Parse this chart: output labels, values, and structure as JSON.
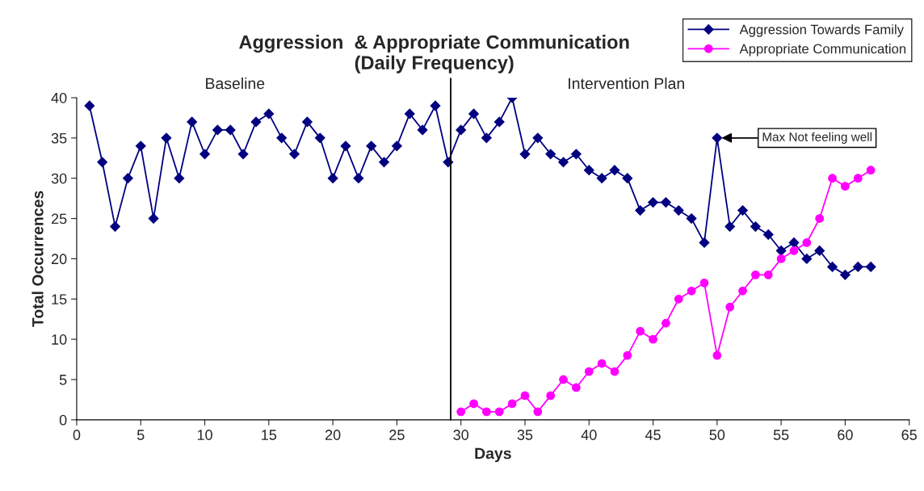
{
  "chart_data": {
    "type": "line",
    "title": "Aggression  & Appropriate Communication\n(Daily Frequency)",
    "xlabel": "Days",
    "ylabel": "Total Occurrences",
    "series": [
      {
        "name": "Aggression Towards Family",
        "color": "#000080",
        "marker": "diamond",
        "x": [
          1,
          2,
          3,
          4,
          5,
          6,
          7,
          8,
          9,
          10,
          11,
          12,
          13,
          14,
          15,
          16,
          17,
          18,
          19,
          20,
          21,
          22,
          23,
          24,
          25,
          26,
          27,
          28,
          29,
          30,
          31,
          32,
          33,
          34,
          35,
          36,
          37,
          38,
          39,
          40,
          41,
          42,
          43,
          44,
          45,
          46,
          47,
          48,
          49,
          50,
          51,
          52,
          53,
          54,
          55,
          56,
          57,
          58,
          59,
          60,
          61,
          62
        ],
        "values": [
          39,
          32,
          24,
          30,
          34,
          25,
          35,
          30,
          37,
          33,
          36,
          36,
          33,
          37,
          38,
          35,
          33,
          37,
          35,
          30,
          34,
          30,
          34,
          32,
          34,
          38,
          36,
          39,
          32,
          36,
          38,
          35,
          37,
          40,
          33,
          35,
          33,
          32,
          33,
          31,
          30,
          31,
          30,
          26,
          27,
          27,
          26,
          25,
          22,
          35,
          24,
          26,
          24,
          23,
          21,
          22,
          20,
          21,
          19,
          18,
          19,
          19
        ]
      },
      {
        "name": "Appropriate Communication",
        "color": "#ff00ff",
        "marker": "circle",
        "x": [
          30,
          31,
          32,
          33,
          34,
          35,
          36,
          37,
          38,
          39,
          40,
          41,
          42,
          43,
          44,
          45,
          46,
          47,
          48,
          49,
          50,
          51,
          52,
          53,
          54,
          55,
          56,
          57,
          58,
          59,
          60,
          61,
          62
        ],
        "values": [
          1,
          2,
          1,
          1,
          2,
          3,
          1,
          3,
          5,
          4,
          6,
          7,
          6,
          8,
          11,
          10,
          12,
          15,
          16,
          17,
          8,
          14,
          16,
          18,
          18,
          20,
          21,
          22,
          25,
          30,
          29,
          30,
          31
        ]
      }
    ],
    "xlim": [
      0,
      65
    ],
    "xticks": [
      0,
      5,
      10,
      15,
      20,
      25,
      30,
      35,
      40,
      45,
      50,
      55,
      60,
      65
    ],
    "ylim": [
      0,
      40
    ],
    "yticks": [
      0,
      5,
      10,
      15,
      20,
      25,
      30,
      35,
      40
    ],
    "ref_lines": [
      {
        "axis": "x",
        "value": 29.2,
        "color": "#000000"
      }
    ],
    "annotations": [
      "Baseline",
      "Intervention Plan",
      {
        "text": "Max Not feeling well",
        "x": 50,
        "y": 35
      }
    ],
    "grid": false,
    "legend": "top right",
    "line_style": "solid"
  }
}
